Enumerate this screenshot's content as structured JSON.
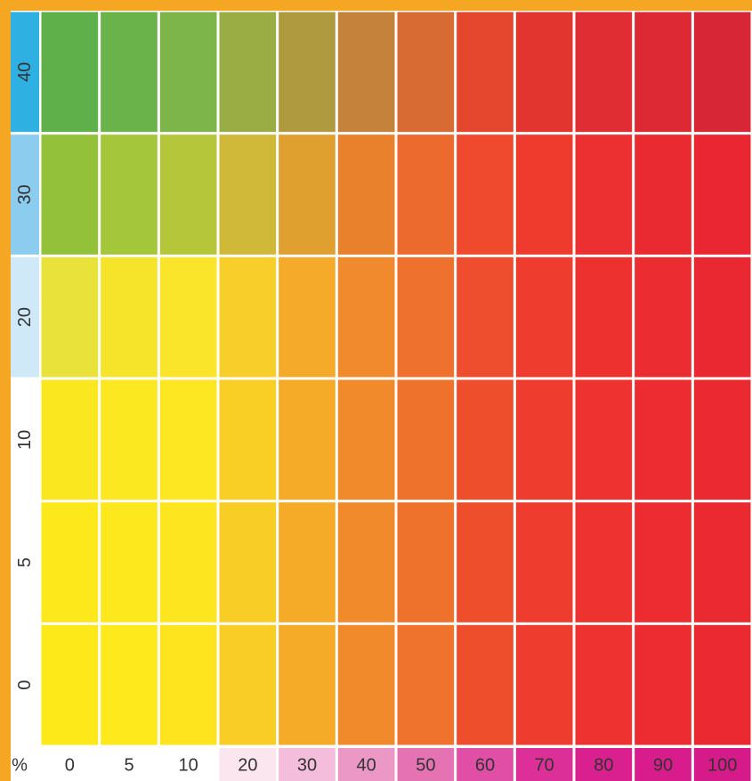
{
  "chart_data": {
    "type": "heatmap",
    "title": "",
    "xlabel": "",
    "ylabel": "",
    "x_unit_label": "%",
    "x_categories": [
      "0",
      "5",
      "10",
      "20",
      "30",
      "40",
      "50",
      "60",
      "70",
      "80",
      "90",
      "100"
    ],
    "y_categories": [
      "40",
      "30",
      "20",
      "10",
      "5",
      "0"
    ],
    "cell_colors": [
      [
        "#5fb04a",
        "#6ab34a",
        "#7db54a",
        "#99ad44",
        "#b09a40",
        "#c4823a",
        "#d86a34",
        "#e5462e",
        "#e33530",
        "#e02c33",
        "#dc2934",
        "#d72736"
      ],
      [
        "#93c23a",
        "#a3c63a",
        "#b6c63a",
        "#d0b838",
        "#e0a030",
        "#e9802c",
        "#ed6a2e",
        "#ef4a2e",
        "#ee3b2e",
        "#ec2f30",
        "#ea2a31",
        "#e92632"
      ],
      [
        "#e9e23a",
        "#f5e42a",
        "#fbe52a",
        "#f8cf2a",
        "#f5aa2a",
        "#f08a2c",
        "#ee722e",
        "#ee4d2e",
        "#ee3c2e",
        "#ec312f",
        "#eb2c30",
        "#ea2831"
      ],
      [
        "#fbe720",
        "#fce820",
        "#fde622",
        "#f9cf26",
        "#f5aa28",
        "#f18a2b",
        "#ef722c",
        "#ef4e2d",
        "#ee3d2e",
        "#ed322f",
        "#ec2c30",
        "#eb2931"
      ],
      [
        "#fde81c",
        "#fde81e",
        "#fde520",
        "#f8cd26",
        "#f5aa28",
        "#f18a2b",
        "#ef722c",
        "#ef4e2d",
        "#ee3d2e",
        "#ed322f",
        "#ec2c30",
        "#eb2931"
      ],
      [
        "#fde91a",
        "#fde91c",
        "#fde41e",
        "#f9cd25",
        "#f5aa28",
        "#f18a2b",
        "#ef732c",
        "#ef4e2d",
        "#ee3d2e",
        "#ed322f",
        "#ec2c30",
        "#eb2931"
      ]
    ],
    "y_label_colors": [
      "#2fb0e2",
      "#8ccdef",
      "#cfe9f8",
      "#ffffff",
      "#ffffff",
      "#ffffff"
    ],
    "x_label_colors": [
      "#ffffff",
      "#ffffff",
      "#ffffff",
      "#fbe6f0",
      "#f3bddb",
      "#eb98c6",
      "#e573b4",
      "#e04fa5",
      "#dd2f98",
      "#da1f8f",
      "#d81c8c",
      "#d61a8a"
    ],
    "frame_color": "#f5a623",
    "grid": "white cell borders",
    "legend": "none"
  }
}
